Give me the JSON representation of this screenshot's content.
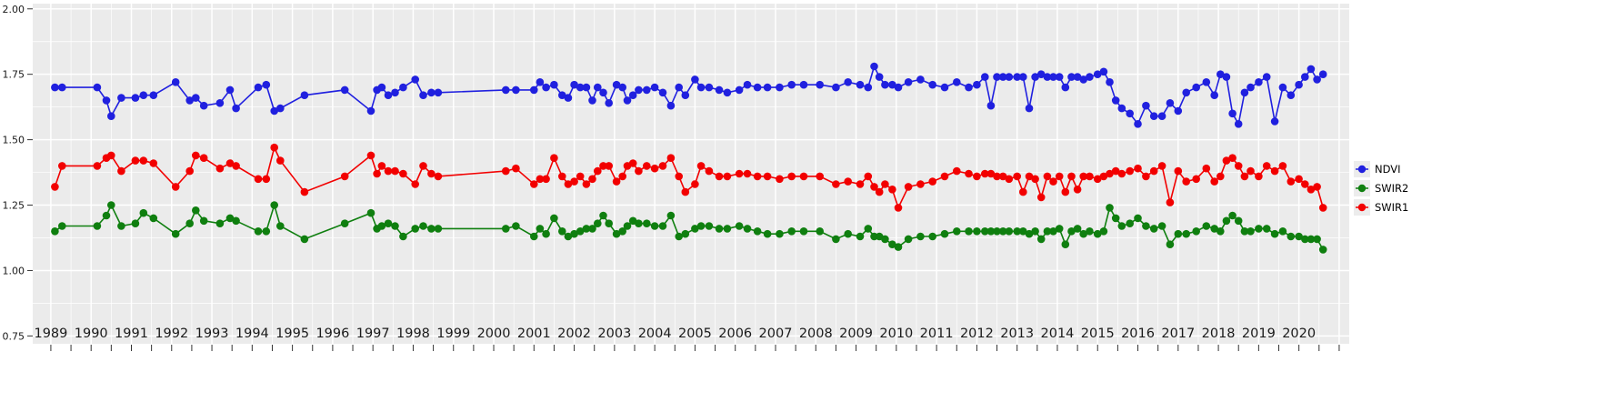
{
  "chart_data": {
    "type": "line",
    "title": "",
    "xlabel": "",
    "ylabel": "",
    "panel_color": "#EBEBEB",
    "grid_color": "#FFFFFF",
    "tick_color": "#333333",
    "label_color": "#1a1a1a",
    "xlim": [
      1988.55,
      2021.25
    ],
    "ylim": [
      0.72,
      2.02
    ],
    "y_ticks": [
      "0.75",
      "1.00",
      "1.25",
      "1.50",
      "1.75",
      "2.00"
    ],
    "x_ticks": [
      "1989",
      "1990",
      "1991",
      "1992",
      "1993",
      "1994",
      "1995",
      "1996",
      "1997",
      "1998",
      "1999",
      "2000",
      "2001",
      "2002",
      "2003",
      "2004",
      "2005",
      "2006",
      "2007",
      "2008",
      "2009",
      "2010",
      "2011",
      "2012",
      "2013",
      "2014",
      "2015",
      "2016",
      "2017",
      "2018",
      "2019",
      "2020"
    ],
    "legend": {
      "position": "right",
      "items": [
        "NDVI",
        "SWIR2",
        "SWIR1"
      ]
    },
    "x": [
      1989.1,
      1989.28,
      1990.15,
      1990.38,
      1990.5,
      1990.75,
      1991.1,
      1991.3,
      1991.55,
      1992.1,
      1992.45,
      1992.6,
      1992.8,
      1993.2,
      1993.45,
      1993.6,
      1994.15,
      1994.35,
      1994.55,
      1994.7,
      1995.3,
      1996.3,
      1996.95,
      1997.1,
      1997.22,
      1997.38,
      1997.55,
      1997.75,
      1998.05,
      1998.25,
      1998.45,
      1998.62,
      2000.3,
      2000.55,
      2001.0,
      2001.15,
      2001.3,
      2001.5,
      2001.7,
      2001.85,
      2002.0,
      2002.15,
      2002.3,
      2002.45,
      2002.58,
      2002.72,
      2002.86,
      2003.05,
      2003.2,
      2003.32,
      2003.46,
      2003.6,
      2003.8,
      2004.0,
      2004.2,
      2004.4,
      2004.6,
      2004.76,
      2005.0,
      2005.15,
      2005.35,
      2005.6,
      2005.8,
      2006.1,
      2006.3,
      2006.55,
      2006.8,
      2007.1,
      2007.4,
      2007.7,
      2008.1,
      2008.5,
      2008.8,
      2009.1,
      2009.3,
      2009.45,
      2009.58,
      2009.72,
      2009.9,
      2010.05,
      2010.3,
      2010.6,
      2010.9,
      2011.2,
      2011.5,
      2011.8,
      2012.0,
      2012.2,
      2012.35,
      2012.5,
      2012.65,
      2012.8,
      2013.0,
      2013.15,
      2013.3,
      2013.45,
      2013.6,
      2013.75,
      2013.9,
      2014.05,
      2014.2,
      2014.35,
      2014.5,
      2014.65,
      2014.8,
      2015.0,
      2015.15,
      2015.3,
      2015.45,
      2015.6,
      2015.8,
      2016.0,
      2016.2,
      2016.4,
      2016.6,
      2016.8,
      2017.0,
      2017.2,
      2017.45,
      2017.7,
      2017.9,
      2018.05,
      2018.2,
      2018.35,
      2018.5,
      2018.65,
      2018.8,
      2019.0,
      2019.2,
      2019.4,
      2019.6,
      2019.8,
      2020.0,
      2020.15,
      2020.3,
      2020.45,
      2020.6
    ],
    "series": [
      {
        "name": "NDVI",
        "color": "#2020DF",
        "values": [
          1.7,
          1.7,
          1.7,
          1.65,
          1.59,
          1.66,
          1.66,
          1.67,
          1.67,
          1.72,
          1.65,
          1.66,
          1.63,
          1.64,
          1.69,
          1.62,
          1.7,
          1.71,
          1.61,
          1.62,
          1.67,
          1.69,
          1.61,
          1.69,
          1.7,
          1.67,
          1.68,
          1.7,
          1.73,
          1.67,
          1.68,
          1.68,
          1.69,
          1.69,
          1.69,
          1.72,
          1.7,
          1.71,
          1.67,
          1.66,
          1.71,
          1.7,
          1.7,
          1.65,
          1.7,
          1.68,
          1.64,
          1.71,
          1.7,
          1.65,
          1.67,
          1.69,
          1.69,
          1.7,
          1.68,
          1.63,
          1.7,
          1.67,
          1.73,
          1.7,
          1.7,
          1.69,
          1.68,
          1.69,
          1.71,
          1.7,
          1.7,
          1.7,
          1.71,
          1.71,
          1.71,
          1.7,
          1.72,
          1.71,
          1.7,
          1.78,
          1.74,
          1.71,
          1.71,
          1.7,
          1.72,
          1.73,
          1.71,
          1.7,
          1.72,
          1.7,
          1.71,
          1.74,
          1.63,
          1.74,
          1.74,
          1.74,
          1.74,
          1.74,
          1.62,
          1.74,
          1.75,
          1.74,
          1.74,
          1.74,
          1.7,
          1.74,
          1.74,
          1.73,
          1.74,
          1.75,
          1.76,
          1.72,
          1.65,
          1.62,
          1.6,
          1.56,
          1.63,
          1.59,
          1.59,
          1.64,
          1.61,
          1.68,
          1.7,
          1.72,
          1.67,
          1.75,
          1.74,
          1.6,
          1.56,
          1.68,
          1.7,
          1.72,
          1.74,
          1.57,
          1.7,
          1.67,
          1.71,
          1.74,
          1.77,
          1.73,
          1.75
        ]
      },
      {
        "name": "SWIR2",
        "color": "#0F7F0F",
        "values": [
          1.15,
          1.17,
          1.17,
          1.21,
          1.25,
          1.17,
          1.18,
          1.22,
          1.2,
          1.14,
          1.18,
          1.23,
          1.19,
          1.18,
          1.2,
          1.19,
          1.15,
          1.15,
          1.25,
          1.17,
          1.12,
          1.18,
          1.22,
          1.16,
          1.17,
          1.18,
          1.17,
          1.13,
          1.16,
          1.17,
          1.16,
          1.16,
          1.16,
          1.17,
          1.13,
          1.16,
          1.14,
          1.2,
          1.15,
          1.13,
          1.14,
          1.15,
          1.16,
          1.16,
          1.18,
          1.21,
          1.18,
          1.14,
          1.15,
          1.17,
          1.19,
          1.18,
          1.18,
          1.17,
          1.17,
          1.21,
          1.13,
          1.14,
          1.16,
          1.17,
          1.17,
          1.16,
          1.16,
          1.17,
          1.16,
          1.15,
          1.14,
          1.14,
          1.15,
          1.15,
          1.15,
          1.12,
          1.14,
          1.13,
          1.16,
          1.13,
          1.13,
          1.12,
          1.1,
          1.09,
          1.12,
          1.13,
          1.13,
          1.14,
          1.15,
          1.15,
          1.15,
          1.15,
          1.15,
          1.15,
          1.15,
          1.15,
          1.15,
          1.15,
          1.14,
          1.15,
          1.12,
          1.15,
          1.15,
          1.16,
          1.1,
          1.15,
          1.16,
          1.14,
          1.15,
          1.14,
          1.15,
          1.24,
          1.2,
          1.17,
          1.18,
          1.2,
          1.17,
          1.16,
          1.17,
          1.1,
          1.14,
          1.14,
          1.15,
          1.17,
          1.16,
          1.15,
          1.19,
          1.21,
          1.19,
          1.15,
          1.15,
          1.16,
          1.16,
          1.14,
          1.15,
          1.13,
          1.13,
          1.12,
          1.12,
          1.12,
          1.08
        ]
      },
      {
        "name": "SWIR1",
        "color": "#F20000",
        "values": [
          1.32,
          1.4,
          1.4,
          1.43,
          1.44,
          1.38,
          1.42,
          1.42,
          1.41,
          1.32,
          1.38,
          1.44,
          1.43,
          1.39,
          1.41,
          1.4,
          1.35,
          1.35,
          1.47,
          1.42,
          1.3,
          1.36,
          1.44,
          1.37,
          1.4,
          1.38,
          1.38,
          1.37,
          1.33,
          1.4,
          1.37,
          1.36,
          1.38,
          1.39,
          1.33,
          1.35,
          1.35,
          1.43,
          1.36,
          1.33,
          1.34,
          1.36,
          1.33,
          1.35,
          1.38,
          1.4,
          1.4,
          1.34,
          1.36,
          1.4,
          1.41,
          1.38,
          1.4,
          1.39,
          1.4,
          1.43,
          1.36,
          1.3,
          1.33,
          1.4,
          1.38,
          1.36,
          1.36,
          1.37,
          1.37,
          1.36,
          1.36,
          1.35,
          1.36,
          1.36,
          1.36,
          1.33,
          1.34,
          1.33,
          1.36,
          1.32,
          1.3,
          1.33,
          1.31,
          1.24,
          1.32,
          1.33,
          1.34,
          1.36,
          1.38,
          1.37,
          1.36,
          1.37,
          1.37,
          1.36,
          1.36,
          1.35,
          1.36,
          1.3,
          1.36,
          1.35,
          1.28,
          1.36,
          1.34,
          1.36,
          1.3,
          1.36,
          1.31,
          1.36,
          1.36,
          1.35,
          1.36,
          1.37,
          1.38,
          1.37,
          1.38,
          1.39,
          1.36,
          1.38,
          1.4,
          1.26,
          1.38,
          1.34,
          1.35,
          1.39,
          1.34,
          1.36,
          1.42,
          1.43,
          1.4,
          1.36,
          1.38,
          1.36,
          1.4,
          1.38,
          1.4,
          1.34,
          1.35,
          1.33,
          1.31,
          1.32,
          1.24
        ]
      }
    ]
  }
}
